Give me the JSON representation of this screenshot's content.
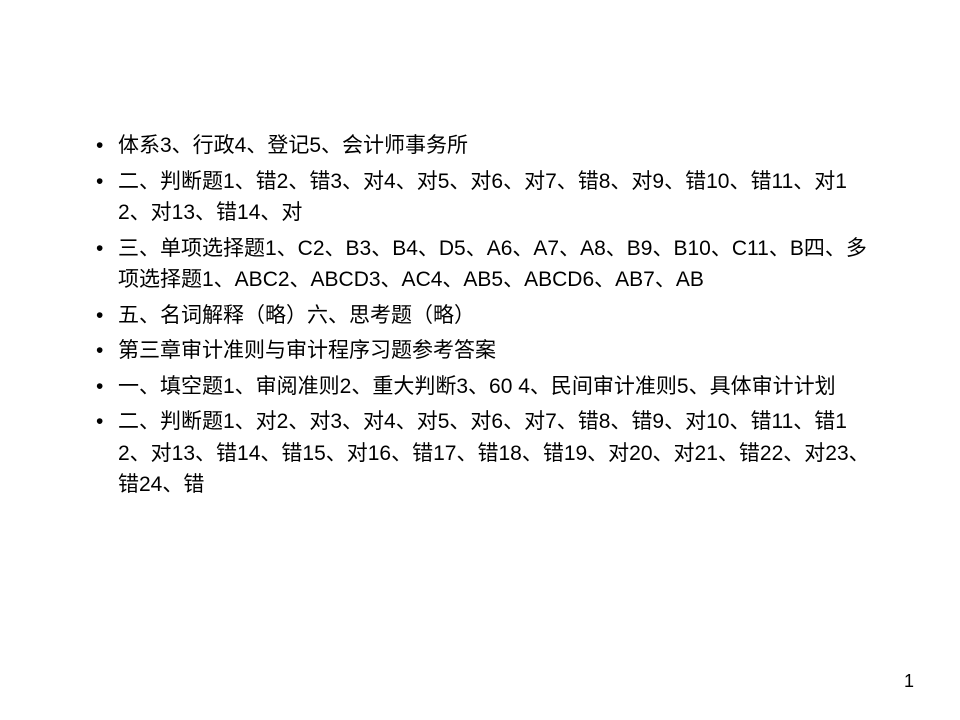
{
  "slide": {
    "bullets": [
      "体系3、行政4、登记5、会计师事务所",
      "二、判断题1、错2、错3、对4、对5、对6、对7、错8、对9、错10、错11、对12、对13、错14、对",
      "三、单项选择题1、C2、B3、B4、D5、A6、A7、A8、B9、B10、C11、B四、多项选择题1、ABC2、ABCD3、AC4、AB5、ABCD6、AB7、AB",
      "五、名词解释（略）六、思考题（略）",
      "第三章审计准则与审计程序习题参考答案",
      "一、填空题1、审阅准则2、重大判断3、60  4、民间审计准则5、具体审计计划",
      "二、判断题1、对2、对3、对4、对5、对6、对7、错8、错9、对10、错11、错12、对13、错14、错15、对16、错17、错18、错19、对20、对21、错22、对23、错24、错"
    ],
    "page_number": "1"
  },
  "style": {
    "background_color": "#ffffff",
    "text_color": "#000000",
    "bullet_color": "#000000",
    "font_size_pt": 16,
    "line_height": 1.5,
    "font_family": "SimSun"
  }
}
